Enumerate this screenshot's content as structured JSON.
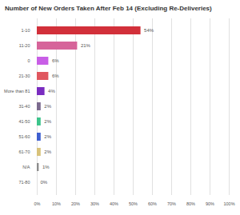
{
  "chart_data": {
    "type": "bar",
    "orientation": "horizontal",
    "title": "Number of New Orders Taken After Feb 14 (Excluding Re-Deliveries)",
    "categories": [
      "1-10",
      "11-20",
      "0",
      "21-30",
      "More than 81",
      "31-40",
      "41-50",
      "51-60",
      "61-70",
      "N/A",
      "71-80"
    ],
    "values": [
      54,
      21,
      6,
      6,
      4,
      2,
      2,
      2,
      2,
      1,
      0
    ],
    "value_labels": [
      "54%",
      "21%",
      "6%",
      "6%",
      "4%",
      "2%",
      "2%",
      "2%",
      "2%",
      "1%",
      "0%"
    ],
    "colors": [
      "#d2303a",
      "#d6649a",
      "#c85ee6",
      "#e0575f",
      "#7a2cc0",
      "#7b6a8e",
      "#3cc48b",
      "#3e5fd0",
      "#d8c27a",
      "#8c8c8c",
      "#9a9a9a"
    ],
    "data_labels": true,
    "grid": true,
    "xlim": [
      0,
      100
    ],
    "xticks": [
      {
        "value": 0,
        "label": "0%"
      },
      {
        "value": 10,
        "label": "10%"
      },
      {
        "value": 20,
        "label": "20%"
      },
      {
        "value": 30,
        "label": "30%"
      },
      {
        "value": 40,
        "label": "40%"
      },
      {
        "value": 50,
        "label": "50%"
      },
      {
        "value": 60,
        "label": "60%"
      },
      {
        "value": 70,
        "label": "70%"
      },
      {
        "value": 80,
        "label": "80%"
      },
      {
        "value": 90,
        "label": "90%"
      },
      {
        "value": 100,
        "label": "100%"
      }
    ]
  }
}
